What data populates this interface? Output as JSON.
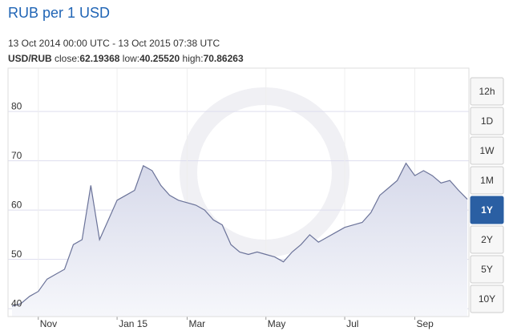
{
  "chart_data": {
    "type": "area",
    "title": "RUB per 1 USD",
    "subtitle": "13 Oct 2014 00:00 UTC - 13 Oct 2015 07:38 UTC",
    "pair": "USD/RUB",
    "stats": [
      {
        "label": "close:",
        "value": "62.19368"
      },
      {
        "label": "low:",
        "value": "40.25520"
      },
      {
        "label": "high:",
        "value": "70.86263"
      }
    ],
    "categories": [
      null,
      null,
      null,
      "Nov",
      null,
      null,
      null,
      null,
      null,
      null,
      null,
      null,
      "Jan 15",
      null,
      null,
      null,
      null,
      null,
      null,
      null,
      "Mar",
      null,
      null,
      null,
      null,
      null,
      null,
      null,
      null,
      "May",
      null,
      null,
      null,
      null,
      null,
      null,
      null,
      null,
      "Jul",
      null,
      null,
      null,
      null,
      null,
      null,
      null,
      "Sep",
      null,
      null,
      null,
      null,
      null,
      null
    ],
    "values": [
      40.5,
      41,
      42.5,
      43.5,
      46,
      47,
      48,
      53,
      54,
      65,
      54,
      58,
      62,
      63,
      64,
      69,
      68,
      65,
      63,
      62,
      61.5,
      61,
      60,
      58,
      57,
      53,
      51.5,
      51,
      51.5,
      51,
      50.5,
      49.5,
      51.5,
      53,
      55,
      53.5,
      54.5,
      55.5,
      56.5,
      57,
      57.5,
      59.5,
      63,
      64.5,
      66,
      69.5,
      67,
      68,
      67,
      65.5,
      66,
      64,
      62.2
    ],
    "color": "#6b7399",
    "ylim": [
      38.4,
      88.8
    ],
    "yticks": [
      40,
      50,
      60,
      70,
      80
    ],
    "grid": true,
    "range_buttons": [
      "12h",
      "1D",
      "1W",
      "1M",
      "1Y",
      "2Y",
      "5Y",
      "10Y"
    ],
    "active_range": "1Y"
  }
}
